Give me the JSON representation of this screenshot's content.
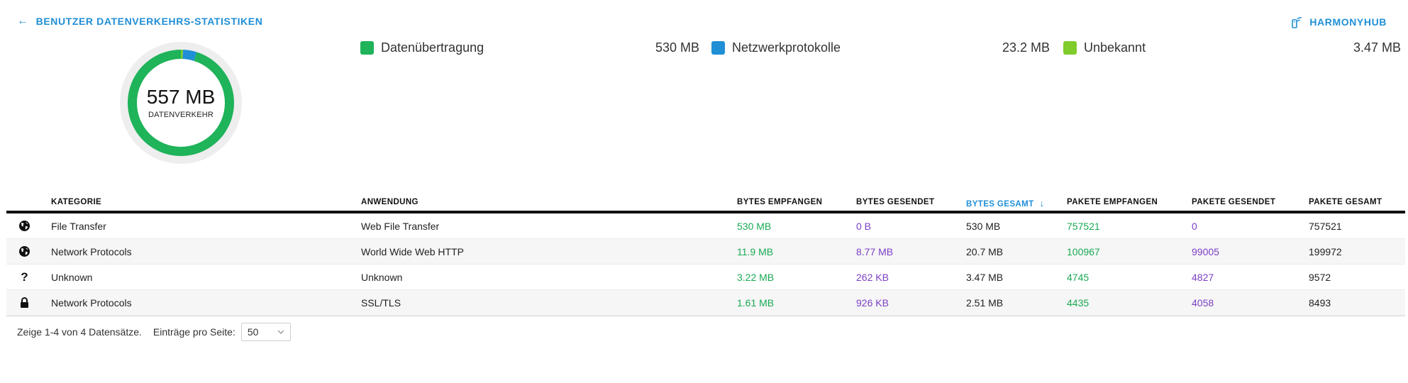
{
  "header": {
    "back_label": "BENUTZER DATENVERKEHRS-STATISTIKEN",
    "device_label": "HARMONYHUB"
  },
  "summary": {
    "total_value": "557 MB",
    "total_label": "DATENVERKEHR"
  },
  "legend": [
    {
      "name": "Datenübertragung",
      "value": "530 MB",
      "color": "#1fb35a"
    },
    {
      "name": "Netzwerkprotokolle",
      "value": "23.2 MB",
      "color": "#1f8fd6"
    },
    {
      "name": "Unbekannt",
      "value": "3.47 MB",
      "color": "#7fcc2a"
    }
  ],
  "chart_data": {
    "type": "pie",
    "variant": "donut",
    "categories": [
      "Datenübertragung",
      "Netzwerkprotokolle",
      "Unbekannt"
    ],
    "values": [
      530,
      23.2,
      3.47
    ],
    "unit": "MB",
    "colors": [
      "#1fb35a",
      "#1f8fd6",
      "#7fcc2a"
    ]
  },
  "table": {
    "columns": {
      "category": "KATEGORIE",
      "application": "ANWENDUNG",
      "bytes_received": "BYTES EMPFANGEN",
      "bytes_sent": "BYTES GESENDET",
      "bytes_total": "BYTES GESAMT",
      "packets_received": "PAKETE EMPFANGEN",
      "packets_sent": "PAKETE GESENDET",
      "packets_total": "PAKETE GESAMT"
    },
    "sort_icon": "arrow-down-icon",
    "rows": [
      {
        "icon": "globe-icon",
        "category": "File Transfer",
        "application": "Web File Transfer",
        "bytes_received": "530 MB",
        "bytes_sent": "0 B",
        "bytes_total": "530 MB",
        "packets_received": "757521",
        "packets_sent": "0",
        "packets_total": "757521"
      },
      {
        "icon": "globe-icon",
        "category": "Network Protocols",
        "application": "World Wide Web HTTP",
        "bytes_received": "11.9 MB",
        "bytes_sent": "8.77 MB",
        "bytes_total": "20.7 MB",
        "packets_received": "100967",
        "packets_sent": "99005",
        "packets_total": "199972"
      },
      {
        "icon": "question-icon",
        "category": "Unknown",
        "application": "Unknown",
        "bytes_received": "3.22 MB",
        "bytes_sent": "262 KB",
        "bytes_total": "3.47 MB",
        "packets_received": "4745",
        "packets_sent": "4827",
        "packets_total": "9572"
      },
      {
        "icon": "lock-icon",
        "category": "Network Protocols",
        "application": "SSL/TLS",
        "bytes_received": "1.61 MB",
        "bytes_sent": "926 KB",
        "bytes_total": "2.51 MB",
        "packets_received": "4435",
        "packets_sent": "4058",
        "packets_total": "8493"
      }
    ]
  },
  "pagination": {
    "summary": "Zeige 1-4 von 4 Datensätze.",
    "per_page_label": "Einträge pro Seite:",
    "per_page_value": "50"
  },
  "colors": {
    "accent": "#1f8fd6",
    "received": "#1aa953",
    "sent": "#7c3fc4"
  }
}
